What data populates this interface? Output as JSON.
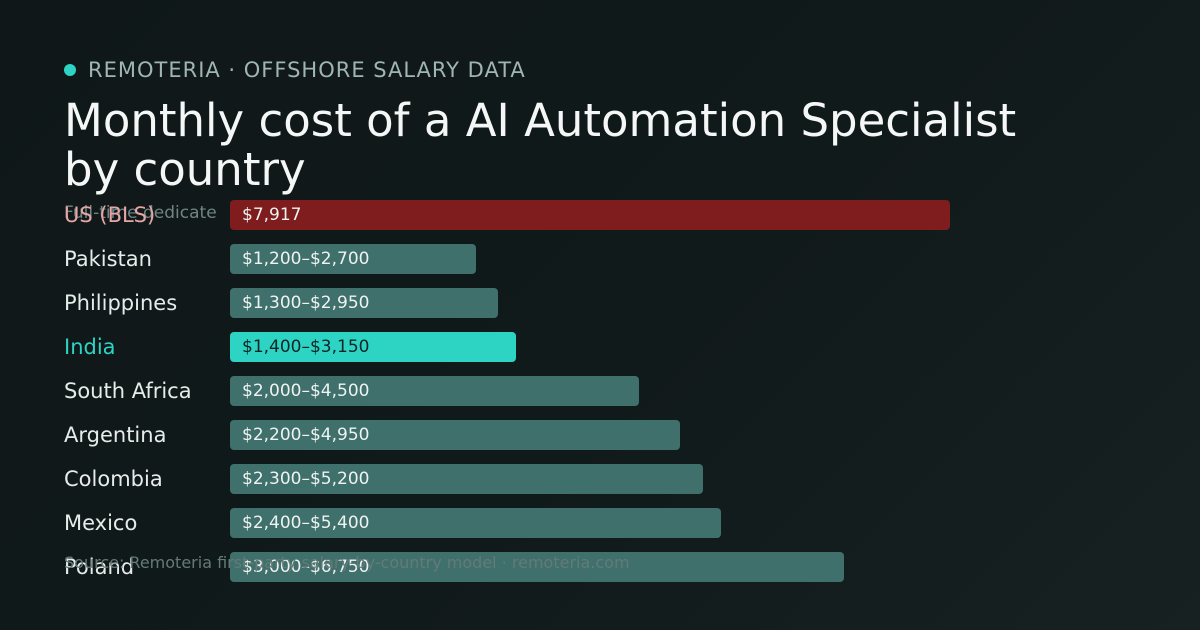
{
  "header": {
    "brand": "REMOTERIA · OFFSHORE SALARY DATA",
    "title": "Monthly cost of a AI Automation Specialist by country",
    "subtitle": "Full-time dedicate",
    "source": "Source: Remoteria first-party salary-by-country model · remoteria.com"
  },
  "colors": {
    "accent": "#2dd4c4",
    "bar_default": "#3f706b",
    "bar_us": "#7e1c1e"
  },
  "chart_data": {
    "type": "bar",
    "orientation": "horizontal",
    "unit": "USD per month",
    "xlim": [
      0,
      7917
    ],
    "grid": false,
    "rows": [
      {
        "country": "US (BLS)",
        "low": 7917,
        "high": 7917,
        "value_label": "$7,917",
        "style": "us"
      },
      {
        "country": "Pakistan",
        "low": 1200,
        "high": 2700,
        "value_label": "$1,200–$2,700",
        "style": "default"
      },
      {
        "country": "Philippines",
        "low": 1300,
        "high": 2950,
        "value_label": "$1,300–$2,950",
        "style": "default"
      },
      {
        "country": "India",
        "low": 1400,
        "high": 3150,
        "value_label": "$1,400–$3,150",
        "style": "highlight"
      },
      {
        "country": "South Africa",
        "low": 2000,
        "high": 4500,
        "value_label": "$2,000–$4,500",
        "style": "default"
      },
      {
        "country": "Argentina",
        "low": 2200,
        "high": 4950,
        "value_label": "$2,200–$4,950",
        "style": "default"
      },
      {
        "country": "Colombia",
        "low": 2300,
        "high": 5200,
        "value_label": "$2,300–$5,200",
        "style": "default"
      },
      {
        "country": "Mexico",
        "low": 2400,
        "high": 5400,
        "value_label": "$2,400–$5,400",
        "style": "default"
      },
      {
        "country": "Poland",
        "low": 3000,
        "high": 6750,
        "value_label": "$3,000–$6,750",
        "style": "default"
      }
    ]
  }
}
